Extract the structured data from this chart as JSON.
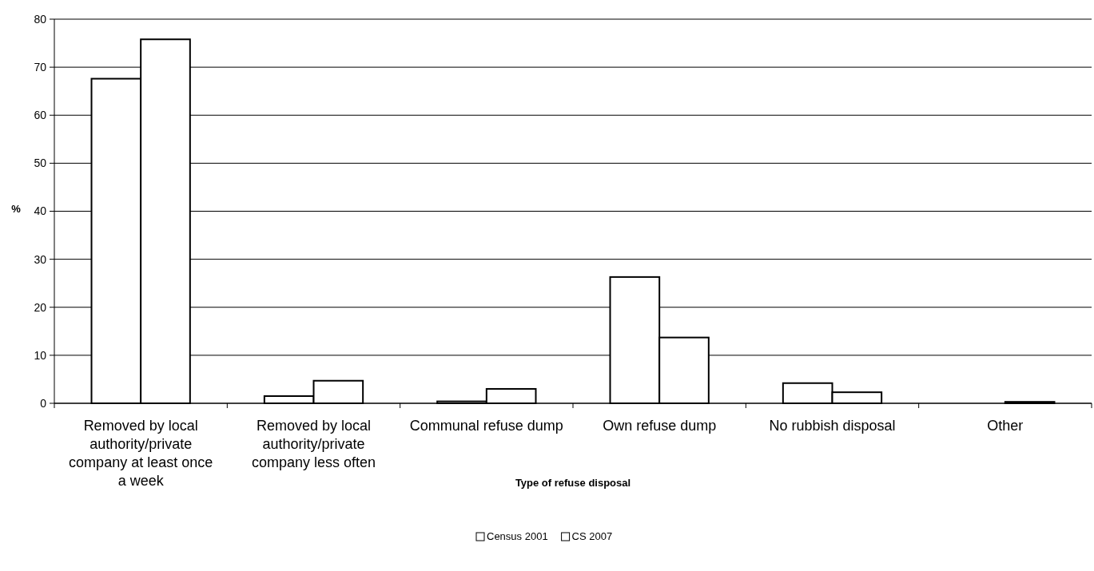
{
  "chart_data": {
    "type": "bar",
    "xlabel": "Type of refuse disposal",
    "ylabel": "%",
    "categories": [
      "Removed by local authority/private company at least once a week",
      "Removed by local authority/private company less often",
      "Communal refuse dump",
      "Own refuse dump",
      "No rubbish disposal",
      "Other"
    ],
    "series": [
      {
        "name": "Census 2001",
        "color": "#ffffff",
        "values": [
          67.6,
          1.5,
          0.4,
          26.3,
          4.2,
          null
        ]
      },
      {
        "name": "CS 2007",
        "color": "#ffffff",
        "values": [
          75.8,
          4.7,
          3.0,
          13.7,
          2.3,
          0.3
        ]
      }
    ],
    "ylim": [
      0,
      80
    ],
    "yticks": [
      0,
      10,
      20,
      30,
      40,
      50,
      60,
      70,
      80
    ],
    "grid": "y",
    "legend": "bottom"
  }
}
